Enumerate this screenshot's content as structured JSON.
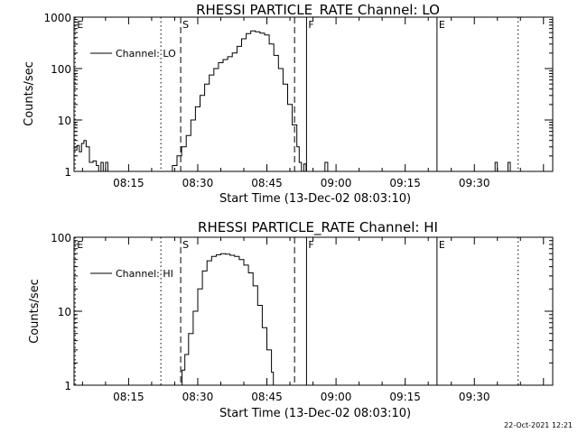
{
  "footer": {
    "timestamp": "22-Oct-2021 12:21"
  },
  "chart_data": [
    {
      "type": "line",
      "title": "RHESSI PARTICLE_RATE Channel: LO",
      "xlabel": "Start Time (13-Dec-02 08:03:10)",
      "ylabel": "Counts/sec",
      "yscale": "log",
      "ylim": [
        1,
        1000
      ],
      "xlim_minutes": [
        3.167,
        107.0
      ],
      "x_ticks": [
        {
          "m": 15,
          "label": "08:15"
        },
        {
          "m": 30,
          "label": "08:30"
        },
        {
          "m": 45,
          "label": "08:45"
        },
        {
          "m": 60,
          "label": "09:00"
        },
        {
          "m": 75,
          "label": "09:15"
        },
        {
          "m": 90,
          "label": "09:30"
        }
      ],
      "y_ticks": [
        {
          "v": 1,
          "label": "1"
        },
        {
          "v": 10,
          "label": "10"
        },
        {
          "v": 100,
          "label": "100"
        },
        {
          "v": 1000,
          "label": "1000"
        }
      ],
      "legend": "Channel: LO",
      "markers": [
        {
          "m": 3.4,
          "label": "E",
          "style": "dotted"
        },
        {
          "m": 22.0,
          "label": "",
          "style": "dotted"
        },
        {
          "m": 26.3,
          "label": "S",
          "style": "dashed"
        },
        {
          "m": 51.0,
          "label": "",
          "style": "dashed"
        },
        {
          "m": 53.6,
          "label": "F",
          "style": "solid"
        },
        {
          "m": 81.9,
          "label": "E",
          "style": "solid"
        },
        {
          "m": 99.5,
          "label": "",
          "style": "dotted"
        }
      ],
      "series": [
        {
          "name": "Channel: LO",
          "points": [
            [
              3.2,
              2.6
            ],
            [
              3.8,
              3.2
            ],
            [
              4.3,
              2.4
            ],
            [
              4.8,
              3.5
            ],
            [
              5.3,
              4.0
            ],
            [
              5.8,
              3.0
            ],
            [
              6.5,
              1.5
            ],
            [
              7.3,
              1.6
            ],
            [
              8.0,
              1.3
            ],
            [
              8.5,
              1.0
            ],
            [
              9.0,
              1.5
            ],
            [
              9.5,
              1.0
            ],
            [
              10.0,
              1.5
            ],
            [
              10.5,
              1.0
            ],
            [
              23.5,
              1.0
            ],
            [
              24.5,
              1.3
            ],
            [
              25.5,
              2.0
            ],
            [
              26.5,
              3.0
            ],
            [
              27.5,
              5.0
            ],
            [
              28.5,
              10
            ],
            [
              29.5,
              18
            ],
            [
              30.5,
              30
            ],
            [
              31.5,
              50
            ],
            [
              32.5,
              75
            ],
            [
              33.5,
              100
            ],
            [
              34.5,
              130
            ],
            [
              35.5,
              150
            ],
            [
              36.5,
              170
            ],
            [
              37.5,
              200
            ],
            [
              38.5,
              270
            ],
            [
              39.5,
              380
            ],
            [
              40.5,
              480
            ],
            [
              41.5,
              540
            ],
            [
              42.5,
              520
            ],
            [
              43.5,
              490
            ],
            [
              44.5,
              450
            ],
            [
              45.5,
              300
            ],
            [
              46.5,
              180
            ],
            [
              47.5,
              100
            ],
            [
              48.5,
              50
            ],
            [
              49.5,
              20
            ],
            [
              50.5,
              8
            ],
            [
              51.5,
              3
            ],
            [
              52.0,
              1.5
            ],
            [
              52.5,
              1.0
            ],
            [
              53.0,
              1.4
            ],
            [
              53.5,
              1.0
            ],
            [
              57.0,
              1.0
            ],
            [
              57.6,
              1.5
            ],
            [
              58.2,
              1.0
            ],
            [
              94.0,
              1.0
            ],
            [
              94.5,
              1.5
            ],
            [
              95.0,
              1.0
            ],
            [
              96.8,
              1.0
            ],
            [
              97.3,
              1.5
            ],
            [
              97.8,
              1.0
            ]
          ]
        }
      ]
    },
    {
      "type": "line",
      "title": "RHESSI PARTICLE_RATE Channel: HI",
      "xlabel": "Start Time (13-Dec-02 08:03:10)",
      "ylabel": "Counts/sec",
      "yscale": "log",
      "ylim": [
        1,
        100
      ],
      "xlim_minutes": [
        3.167,
        107.0
      ],
      "x_ticks": [
        {
          "m": 15,
          "label": "08:15"
        },
        {
          "m": 30,
          "label": "08:30"
        },
        {
          "m": 45,
          "label": "08:45"
        },
        {
          "m": 60,
          "label": "09:00"
        },
        {
          "m": 75,
          "label": "09:15"
        },
        {
          "m": 90,
          "label": "09:30"
        }
      ],
      "y_ticks": [
        {
          "v": 1,
          "label": "1"
        },
        {
          "v": 10,
          "label": "10"
        },
        {
          "v": 100,
          "label": "100"
        }
      ],
      "legend": "Channel: HI",
      "markers": [
        {
          "m": 3.4,
          "label": "E",
          "style": "dotted"
        },
        {
          "m": 22.0,
          "label": "",
          "style": "dotted"
        },
        {
          "m": 26.3,
          "label": "S",
          "style": "dashed"
        },
        {
          "m": 51.0,
          "label": "",
          "style": "dashed"
        },
        {
          "m": 53.6,
          "label": "F",
          "style": "solid"
        },
        {
          "m": 81.9,
          "label": "E",
          "style": "solid"
        },
        {
          "m": 99.5,
          "label": "",
          "style": "dotted"
        }
      ],
      "series": [
        {
          "name": "Channel: HI",
          "points": [
            [
              26.0,
              1.0
            ],
            [
              26.6,
              1.6
            ],
            [
              27.2,
              2.6
            ],
            [
              28.0,
              5.0
            ],
            [
              29.0,
              10
            ],
            [
              30.0,
              20
            ],
            [
              31.0,
              35
            ],
            [
              32.0,
              48
            ],
            [
              33.0,
              55
            ],
            [
              34.0,
              58
            ],
            [
              35.0,
              60
            ],
            [
              36.0,
              59
            ],
            [
              37.0,
              57
            ],
            [
              38.0,
              55
            ],
            [
              39.0,
              50
            ],
            [
              40.0,
              42
            ],
            [
              41.0,
              33
            ],
            [
              42.0,
              22
            ],
            [
              43.0,
              12
            ],
            [
              44.0,
              6
            ],
            [
              45.0,
              3
            ],
            [
              46.0,
              1.5
            ],
            [
              46.4,
              1.0
            ]
          ]
        }
      ]
    }
  ]
}
